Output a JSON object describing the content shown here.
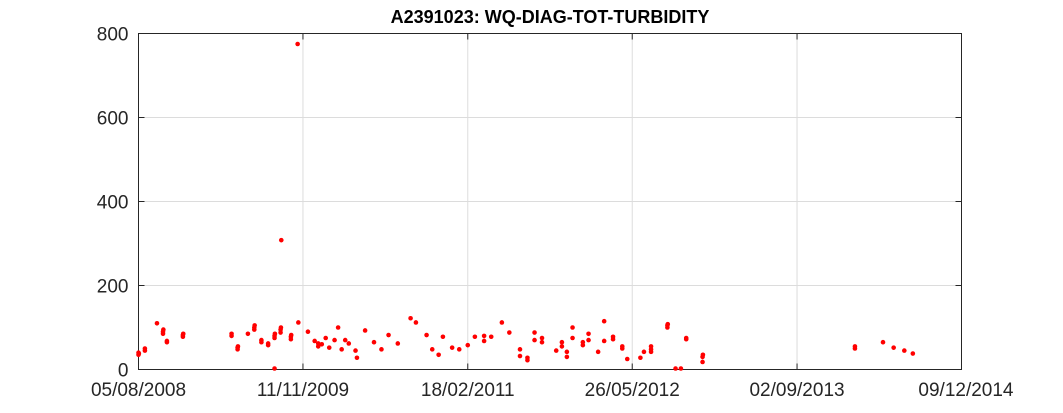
{
  "chart_data": {
    "type": "scatter",
    "title": "A2391023: WQ-DIAG-TOT-TURBIDITY",
    "xlabel": "",
    "ylabel": "",
    "x_axis": "date",
    "xlim": [
      "05/08/2008",
      "09/12/2014"
    ],
    "ylim": [
      0,
      800
    ],
    "yticks": [
      0,
      200,
      400,
      600,
      800
    ],
    "xticks": [
      "05/08/2008",
      "11/11/2009",
      "18/02/2011",
      "26/05/2012",
      "02/09/2013",
      "09/12/2014"
    ],
    "grid": "on",
    "legend": "none",
    "marker_color": "#ff0000",
    "series": [
      {
        "points": [
          [
            "05/08/2008",
            35
          ],
          [
            "05/08/2008",
            40
          ],
          [
            "06/08/2008",
            38
          ],
          [
            "23/08/2008",
            45
          ],
          [
            "23/08/2008",
            50
          ],
          [
            "26/09/2008",
            110
          ],
          [
            "13/10/2008",
            85
          ],
          [
            "13/10/2008",
            90
          ],
          [
            "14/10/2008",
            95
          ],
          [
            "24/10/2008",
            65
          ],
          [
            "24/10/2008",
            68
          ],
          [
            "08/12/2008",
            78
          ],
          [
            "08/12/2008",
            82
          ],
          [
            "09/12/2008",
            85
          ],
          [
            "24/04/2009",
            80
          ],
          [
            "24/04/2009",
            85
          ],
          [
            "11/05/2009",
            48
          ],
          [
            "11/05/2009",
            52
          ],
          [
            "12/05/2009",
            55
          ],
          [
            "09/06/2009",
            85
          ],
          [
            "27/06/2009",
            95
          ],
          [
            "27/06/2009",
            100
          ],
          [
            "28/06/2009",
            105
          ],
          [
            "17/07/2009",
            65
          ],
          [
            "17/07/2009",
            70
          ],
          [
            "05/08/2009",
            58
          ],
          [
            "05/08/2009",
            62
          ],
          [
            "23/08/2009",
            2
          ],
          [
            "23/08/2009",
            75
          ],
          [
            "23/08/2009",
            80
          ],
          [
            "24/08/2009",
            85
          ],
          [
            "09/09/2009",
            88
          ],
          [
            "09/09/2009",
            95
          ],
          [
            "10/09/2009",
            100
          ],
          [
            "11/09/2009",
            308
          ],
          [
            "08/10/2009",
            72
          ],
          [
            "08/10/2009",
            78
          ],
          [
            "09/10/2009",
            82
          ],
          [
            "27/10/2009",
            775
          ],
          [
            "29/10/2009",
            112
          ],
          [
            "25/11/2009",
            90
          ],
          [
            "14/12/2009",
            68
          ],
          [
            "24/12/2009",
            55
          ],
          [
            "24/12/2009",
            62
          ],
          [
            "03/01/2010",
            60
          ],
          [
            "14/01/2010",
            75
          ],
          [
            "24/01/2010",
            52
          ],
          [
            "08/02/2010",
            70
          ],
          [
            "18/02/2010",
            100
          ],
          [
            "28/02/2010",
            48
          ],
          [
            "10/03/2010",
            70
          ],
          [
            "20/03/2010",
            62
          ],
          [
            "08/04/2010",
            45
          ],
          [
            "12/04/2010",
            28
          ],
          [
            "05/05/2010",
            93
          ],
          [
            "30/05/2010",
            65
          ],
          [
            "20/06/2010",
            48
          ],
          [
            "10/07/2010",
            82
          ],
          [
            "05/08/2010",
            62
          ],
          [
            "10/09/2010",
            122
          ],
          [
            "25/09/2010",
            112
          ],
          [
            "25/10/2010",
            82
          ],
          [
            "10/11/2010",
            48
          ],
          [
            "28/11/2010",
            35
          ],
          [
            "10/12/2010",
            78
          ],
          [
            "05/01/2011",
            52
          ],
          [
            "25/01/2011",
            48
          ],
          [
            "18/02/2011",
            58
          ],
          [
            "10/03/2011",
            78
          ],
          [
            "05/04/2011",
            68
          ],
          [
            "05/04/2011",
            80
          ],
          [
            "25/04/2011",
            78
          ],
          [
            "25/05/2011",
            112
          ],
          [
            "15/06/2011",
            88
          ],
          [
            "15/07/2011",
            48
          ],
          [
            "15/07/2011",
            32
          ],
          [
            "05/08/2011",
            28
          ],
          [
            "05/08/2011",
            22
          ],
          [
            "25/08/2011",
            70
          ],
          [
            "25/08/2011",
            88
          ],
          [
            "15/09/2011",
            65
          ],
          [
            "15/09/2011",
            75
          ],
          [
            "25/10/2011",
            45
          ],
          [
            "10/11/2011",
            55
          ],
          [
            "10/11/2011",
            65
          ],
          [
            "24/11/2011",
            30
          ],
          [
            "24/11/2011",
            42
          ],
          [
            "10/12/2011",
            75
          ],
          [
            "10/12/2011",
            100
          ],
          [
            "08/01/2012",
            58
          ],
          [
            "08/01/2012",
            65
          ],
          [
            "24/01/2012",
            70
          ],
          [
            "24/01/2012",
            85
          ],
          [
            "20/02/2012",
            42
          ],
          [
            "08/03/2012",
            68
          ],
          [
            "08/03/2012",
            115
          ],
          [
            "02/04/2012",
            72
          ],
          [
            "02/04/2012",
            78
          ],
          [
            "28/04/2012",
            50
          ],
          [
            "28/04/2012",
            55
          ],
          [
            "12/05/2012",
            25
          ],
          [
            "18/06/2012",
            28
          ],
          [
            "28/06/2012",
            42
          ],
          [
            "18/07/2012",
            42
          ],
          [
            "18/07/2012",
            48
          ],
          [
            "18/07/2012",
            55
          ],
          [
            "02/09/2012",
            100
          ],
          [
            "02/09/2012",
            105
          ],
          [
            "03/09/2012",
            108
          ],
          [
            "25/09/2012",
            2
          ],
          [
            "10/10/2012",
            2
          ],
          [
            "25/10/2012",
            75
          ],
          [
            "25/10/2012",
            72
          ],
          [
            "10/12/2012",
            18
          ],
          [
            "10/12/2012",
            30
          ],
          [
            "11/12/2012",
            35
          ],
          [
            "12/02/2014",
            50
          ],
          [
            "12/02/2014",
            55
          ],
          [
            "02/05/2014",
            65
          ],
          [
            "01/06/2014",
            52
          ],
          [
            "01/07/2014",
            45
          ],
          [
            "25/07/2014",
            38
          ]
        ]
      }
    ]
  }
}
